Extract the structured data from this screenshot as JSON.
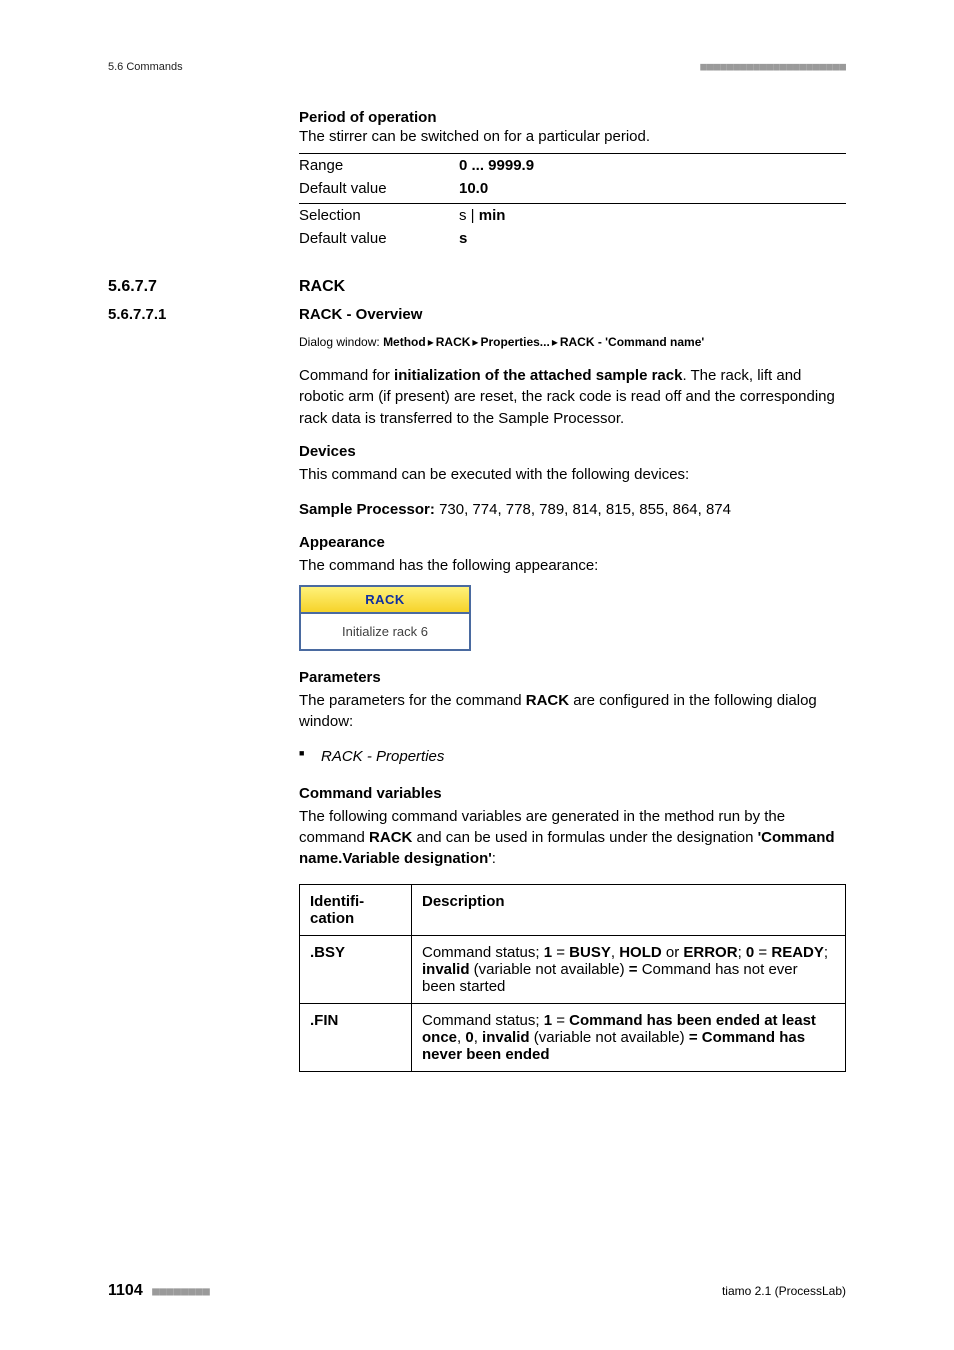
{
  "header": {
    "left": "5.6 Commands",
    "bars": "■■■■■■■■■■■■■■■■■■■■■■"
  },
  "period_block": {
    "title": "Period of operation",
    "desc": "The stirrer can be switched on for a particular period.",
    "rows": [
      {
        "key": "Range",
        "value": "0 ... 9999.9",
        "sep": true
      },
      {
        "key": "Default value",
        "value": "10.0",
        "sep": false
      },
      {
        "key": "Selection",
        "value_html": "s | <b>min</b>",
        "value_bold_default": false,
        "sep": true
      },
      {
        "key": "Default value",
        "value": "s",
        "sep": false
      }
    ]
  },
  "section_rack": {
    "num": "5.6.7.7",
    "title": "RACK"
  },
  "section_overview": {
    "num": "5.6.7.7.1",
    "title": "RACK - Overview"
  },
  "dialog_window": {
    "label": "Dialog window:",
    "path": [
      "Method",
      "RACK",
      "Properties...",
      "RACK - 'Command name'"
    ]
  },
  "overview_para": {
    "pre": "Command for ",
    "bold": "initialization of the attached sample rack",
    "post": ". The rack, lift and robotic arm (if present) are reset, the rack code is read off and the corresponding rack data is transferred to the Sample Processor."
  },
  "devices": {
    "head": "Devices",
    "p1": "This command can be executed with the following devices:",
    "p2_label": "Sample Processor:",
    "p2_rest": " 730, 774, 778, 789, 814, 815, 855, 864, 874"
  },
  "appearance": {
    "head": "Appearance",
    "p": "The command has the following appearance:",
    "box_title": "RACK",
    "box_body": "Initialize rack 6",
    "colors": {
      "border": "#4a6aa0",
      "title_text": "#1030a0",
      "title_grad_top": "#fff27a",
      "title_grad_bottom": "#f6d32a",
      "body_bg": "#ffffff",
      "body_text": "#404040"
    }
  },
  "parameters": {
    "head": "Parameters",
    "p_pre": "The parameters for the command ",
    "p_bold": "RACK",
    "p_post": " are configured in the following dialog window:",
    "items": [
      "RACK - Properties"
    ]
  },
  "cmd_vars": {
    "head": "Command variables",
    "p_pre": "The following command variables are generated in the method run by the command ",
    "p_bold1": "RACK",
    "p_mid": " and can be used in formulas under the designation ",
    "p_bold2": "'Command name.Variable designation'",
    "p_post": ":",
    "table": {
      "col1": "Identification",
      "col2": "Description",
      "rows": [
        {
          "ident": ".BSY",
          "desc_html": "Command status; <b>1</b> = <b>BUSY</b>, <b>HOLD</b> or <b>ERROR</b>; <b>0</b> = <b>READY</b>; <b>invalid</b> (variable not available) <b>=</b> Command has not ever been started"
        },
        {
          "ident": ".FIN",
          "desc_html": "Command status; <b>1</b> = <b>Command has been ended at least once</b>, <b>0</b>, <b>invalid</b> (variable not available) <b>= Command has never been ended</b>"
        }
      ]
    }
  },
  "footer": {
    "page": "1104",
    "bars": "■■■■■■■■",
    "product": "tiamo 2.1 (ProcessLab)"
  }
}
